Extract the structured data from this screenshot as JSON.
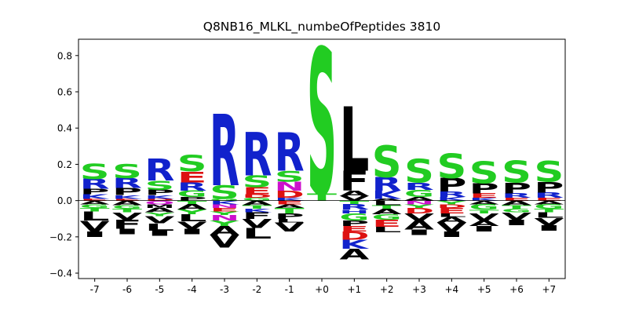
{
  "chart_data": {
    "type": "sequence-logo",
    "title": "Q8NB16_MLKL_numbeOfPeptides 3810",
    "xlabel": "",
    "ylabel": "",
    "ylim": [
      -0.43,
      0.89
    ],
    "yticks": [
      -0.4,
      -0.2,
      0.0,
      0.2,
      0.4,
      0.6,
      0.8
    ],
    "ytick_labels": [
      "−0.4",
      "−0.2",
      "0.0",
      "0.2",
      "0.4",
      "0.6",
      "0.8"
    ],
    "categories": [
      "-7",
      "-6",
      "-5",
      "-4",
      "-3",
      "-2",
      "-1",
      "+0",
      "+1",
      "+2",
      "+3",
      "+4",
      "+5",
      "+6",
      "+7"
    ],
    "grid": false,
    "zero_line": true,
    "colors": {
      "S": "#22cc22",
      "T": "#22cc22",
      "G": "#22cc22",
      "Y": "#22cc22",
      "C": "#22cc22",
      "R": "#1122cc",
      "K": "#1122cc",
      "H": "#1122cc",
      "D": "#dd1111",
      "E": "#dd1111",
      "N": "#cc11cc",
      "Q": "#cc11cc",
      "P": "#000000",
      "A": "#000000",
      "V": "#000000",
      "L": "#000000",
      "I": "#000000",
      "F": "#000000",
      "M": "#000000",
      "W": "#000000"
    },
    "positions": [
      {
        "label": "-7",
        "pos": [
          [
            "S",
            0.085
          ],
          [
            "R",
            0.055
          ],
          [
            "P",
            0.03
          ],
          [
            "K",
            0.025
          ],
          [
            "E",
            0.01
          ]
        ],
        "neg": [
          [
            "A",
            0.02
          ],
          [
            "G",
            0.02
          ],
          [
            "T",
            0.02
          ],
          [
            "L",
            0.05
          ],
          [
            "V",
            0.06
          ],
          [
            "I",
            0.03
          ]
        ]
      },
      {
        "label": "-6",
        "pos": [
          [
            "S",
            0.08
          ],
          [
            "R",
            0.055
          ],
          [
            "P",
            0.04
          ],
          [
            "K",
            0.02
          ],
          [
            "E",
            0.01
          ]
        ],
        "neg": [
          [
            "A",
            0.025
          ],
          [
            "G",
            0.02
          ],
          [
            "T",
            0.02
          ],
          [
            "V",
            0.04
          ],
          [
            "F",
            0.05
          ],
          [
            "I",
            0.03
          ]
        ]
      },
      {
        "label": "-5",
        "pos": [
          [
            "R",
            0.12
          ],
          [
            "S",
            0.05
          ],
          [
            "P",
            0.03
          ],
          [
            "K",
            0.02
          ],
          [
            "D",
            0.01
          ]
        ],
        "neg": [
          [
            "Q",
            0.02
          ],
          [
            "M",
            0.02
          ],
          [
            "A",
            0.025
          ],
          [
            "Y",
            0.02
          ],
          [
            "V",
            0.04
          ],
          [
            "L",
            0.04
          ],
          [
            "I",
            0.03
          ]
        ]
      },
      {
        "label": "-4",
        "pos": [
          [
            "S",
            0.09
          ],
          [
            "E",
            0.06
          ],
          [
            "R",
            0.045
          ],
          [
            "G",
            0.035
          ],
          [
            "P",
            0.02
          ]
        ],
        "neg": [
          [
            "T",
            0.02
          ],
          [
            "A",
            0.03
          ],
          [
            "Y",
            0.025
          ],
          [
            "L",
            0.04
          ],
          [
            "V",
            0.04
          ],
          [
            "I",
            0.03
          ]
        ]
      },
      {
        "label": "-3",
        "pos": [
          [
            "R",
            0.395
          ],
          [
            "S",
            0.075
          ],
          [
            "G",
            0.01
          ]
        ],
        "neg": [
          [
            "K",
            0.02
          ],
          [
            "N",
            0.02
          ],
          [
            "E",
            0.02
          ],
          [
            "Y",
            0.02
          ],
          [
            "N",
            0.03
          ],
          [
            "Y",
            0.03
          ],
          [
            "A",
            0.05
          ],
          [
            "V",
            0.07
          ]
        ]
      },
      {
        "label": "-2",
        "pos": [
          [
            "R",
            0.24
          ],
          [
            "S",
            0.065
          ],
          [
            "E",
            0.04
          ],
          [
            "D",
            0.02
          ],
          [
            "G",
            0.015
          ]
        ],
        "neg": [
          [
            "A",
            0.025
          ],
          [
            "T",
            0.02
          ],
          [
            "K",
            0.02
          ],
          [
            "F",
            0.035
          ],
          [
            "V",
            0.05
          ],
          [
            "L",
            0.06
          ]
        ]
      },
      {
        "label": "-1",
        "pos": [
          [
            "R",
            0.21
          ],
          [
            "S",
            0.06
          ],
          [
            "N",
            0.05
          ],
          [
            "D",
            0.04
          ],
          [
            "K",
            0.015
          ]
        ],
        "neg": [
          [
            "E",
            0.02
          ],
          [
            "A",
            0.02
          ],
          [
            "T",
            0.03
          ],
          [
            "P",
            0.03
          ],
          [
            "L",
            0.02
          ],
          [
            "V",
            0.05
          ]
        ]
      },
      {
        "label": "+0",
        "pos": [
          [
            "S",
            0.805
          ],
          [
            "T",
            0.04
          ]
        ],
        "neg": []
      },
      {
        "label": "+1",
        "pos": [
          [
            "L",
            0.355
          ],
          [
            "F",
            0.11
          ],
          [
            "A",
            0.03
          ],
          [
            "V",
            0.025
          ]
        ],
        "neg": [
          [
            "T",
            0.02
          ],
          [
            "R",
            0.03
          ],
          [
            "H",
            0.02
          ],
          [
            "G",
            0.04
          ],
          [
            "P",
            0.03
          ],
          [
            "E",
            0.03
          ],
          [
            "D",
            0.045
          ],
          [
            "K",
            0.05
          ],
          [
            "A",
            0.06
          ]
        ]
      },
      {
        "label": "+2",
        "pos": [
          [
            "S",
            0.175
          ],
          [
            "R",
            0.075
          ],
          [
            "K",
            0.045
          ],
          [
            "A",
            0.01
          ]
        ],
        "neg": [
          [
            "L",
            0.025
          ],
          [
            "T",
            0.02
          ],
          [
            "A",
            0.03
          ],
          [
            "G",
            0.03
          ],
          [
            "E",
            0.04
          ],
          [
            "L",
            0.03
          ]
        ]
      },
      {
        "label": "+3",
        "pos": [
          [
            "S",
            0.13
          ],
          [
            "R",
            0.04
          ],
          [
            "G",
            0.04
          ],
          [
            "A",
            0.02
          ]
        ],
        "neg": [
          [
            "N",
            0.02
          ],
          [
            "Y",
            0.02
          ],
          [
            "D",
            0.03
          ],
          [
            "V",
            0.04
          ],
          [
            "A",
            0.05
          ],
          [
            "I",
            0.03
          ]
        ]
      },
      {
        "label": "+4",
        "pos": [
          [
            "S",
            0.135
          ],
          [
            "P",
            0.075
          ],
          [
            "R",
            0.03
          ],
          [
            "K",
            0.02
          ]
        ],
        "neg": [
          [
            "Y",
            0.02
          ],
          [
            "D",
            0.02
          ],
          [
            "E",
            0.03
          ],
          [
            "L",
            0.02
          ],
          [
            "A",
            0.03
          ],
          [
            "V",
            0.05
          ],
          [
            "I",
            0.03
          ]
        ]
      },
      {
        "label": "+5",
        "pos": [
          [
            "S",
            0.12
          ],
          [
            "P",
            0.055
          ],
          [
            "E",
            0.025
          ],
          [
            "K",
            0.015
          ]
        ],
        "neg": [
          [
            "A",
            0.02
          ],
          [
            "G",
            0.03
          ],
          [
            "T",
            0.02
          ],
          [
            "V",
            0.04
          ],
          [
            "A",
            0.03
          ],
          [
            "I",
            0.03
          ]
        ]
      },
      {
        "label": "+6",
        "pos": [
          [
            "S",
            0.12
          ],
          [
            "P",
            0.06
          ],
          [
            "R",
            0.025
          ],
          [
            "E",
            0.015
          ]
        ],
        "neg": [
          [
            "A",
            0.025
          ],
          [
            "T",
            0.02
          ],
          [
            "G",
            0.02
          ],
          [
            "V",
            0.04
          ],
          [
            "I",
            0.03
          ]
        ]
      },
      {
        "label": "+7",
        "pos": [
          [
            "S",
            0.115
          ],
          [
            "P",
            0.06
          ],
          [
            "R",
            0.03
          ],
          [
            "E",
            0.015
          ]
        ],
        "neg": [
          [
            "A",
            0.02
          ],
          [
            "G",
            0.025
          ],
          [
            "T",
            0.02
          ],
          [
            "L",
            0.03
          ],
          [
            "V",
            0.04
          ],
          [
            "I",
            0.03
          ]
        ]
      }
    ]
  }
}
